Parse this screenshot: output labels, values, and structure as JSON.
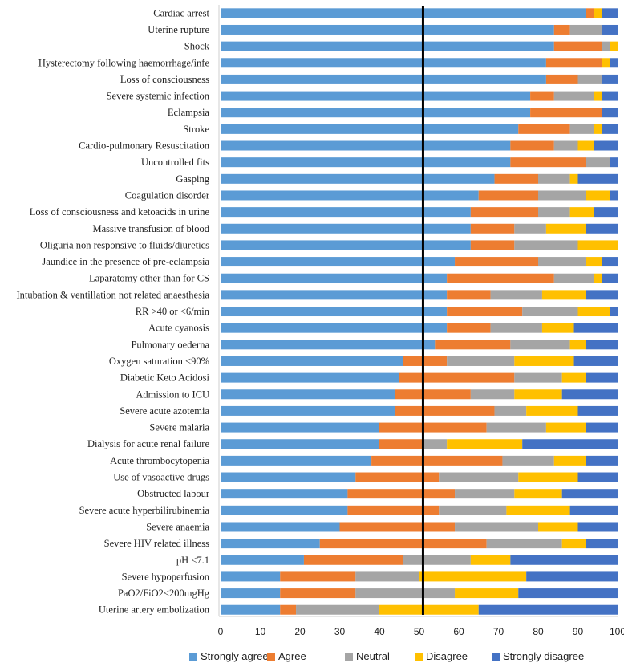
{
  "chart_data": {
    "type": "bar",
    "orientation": "horizontal",
    "stacked": true,
    "categories": [
      "Cardiac arrest",
      "Uterine rupture",
      "Shock",
      "Hysterectomy following haemorrhage/infe",
      "Loss of consciousness",
      "Severe systemic infection",
      "Eclampsia",
      "Stroke",
      "Cardio-pulmonary Resuscitation",
      "Uncontrolled fits",
      "Gasping",
      "Coagulation disorder",
      "Loss of consciousness and ketoacids in urine",
      "Massive transfusion of  blood",
      "Oliguria non responsive to fluids/diuretics",
      "Jaundice in the presence of pre-eclampsia",
      "Laparatomy other than for CS",
      "Intubation & ventillation not related anaesthesia",
      "RR >40 or <6/min",
      "Acute cyanosis",
      "Pulmonary oederna",
      "Oxygen saturation <90%",
      "Diabetic Keto Acidosi",
      "Admission to ICU",
      "Severe acute azotemia",
      "Severe malaria",
      "Dialysis for acute renal failure",
      "Acute thrombocytopenia",
      "Use of vasoactive drugs",
      "Obstructed labour",
      "Severe acute hyperbilirubinemia",
      "Severe anaemia",
      "Severe HIV related illness",
      "pH <7.1",
      "Severe hypoperfusion",
      "PaO2/FiO2<200mgHg",
      "Uterine artery embolization"
    ],
    "series": [
      {
        "name": "Strongly agree",
        "color": "#5b9bd5",
        "values": [
          92,
          84,
          84,
          82,
          82,
          78,
          78,
          75,
          73,
          73,
          69,
          65,
          63,
          63,
          63,
          59,
          57,
          57,
          57,
          57,
          54,
          46,
          45,
          44,
          44,
          40,
          40,
          38,
          34,
          32,
          32,
          30,
          25,
          21,
          15,
          15,
          15
        ]
      },
      {
        "name": "Agree",
        "color": "#ed7d31",
        "values": [
          2,
          4,
          12,
          14,
          8,
          6,
          18,
          13,
          11,
          19,
          11,
          15,
          17,
          11,
          11,
          21,
          27,
          11,
          19,
          11,
          19,
          11,
          29,
          19,
          25,
          27,
          11,
          33,
          21,
          27,
          23,
          29,
          42,
          25,
          19,
          19,
          4
        ]
      },
      {
        "name": "Neutral",
        "color": "#a5a5a5",
        "values": [
          0,
          8,
          2,
          0,
          6,
          10,
          0,
          6,
          6,
          6,
          8,
          12,
          8,
          8,
          16,
          12,
          10,
          13,
          14,
          13,
          15,
          17,
          12,
          11,
          8,
          15,
          6,
          13,
          20,
          15,
          17,
          21,
          19,
          17,
          16,
          25,
          21
        ]
      },
      {
        "name": "Disagree",
        "color": "#ffc000",
        "values": [
          2,
          0,
          2,
          2,
          0,
          2,
          0,
          2,
          4,
          0,
          2,
          6,
          6,
          10,
          10,
          4,
          2,
          11,
          8,
          8,
          4,
          15,
          6,
          12,
          13,
          10,
          19,
          8,
          15,
          12,
          16,
          10,
          6,
          10,
          27,
          16,
          25
        ]
      },
      {
        "name": "Strongly disagree",
        "color": "#4472c4",
        "values": [
          4,
          4,
          0,
          2,
          4,
          4,
          4,
          4,
          6,
          2,
          10,
          2,
          6,
          8,
          0,
          4,
          4,
          8,
          2,
          11,
          8,
          11,
          8,
          14,
          10,
          8,
          24,
          8,
          10,
          14,
          12,
          10,
          8,
          27,
          23,
          25,
          35
        ]
      }
    ],
    "xlim": [
      0,
      100
    ],
    "xticks": [
      "0",
      "10",
      "20",
      "30",
      "40",
      "50",
      "60",
      "70",
      "80",
      "90",
      "100"
    ],
    "reference_line_x": 51,
    "legend_position": "bottom",
    "title": "",
    "xlabel": "",
    "ylabel": ""
  }
}
